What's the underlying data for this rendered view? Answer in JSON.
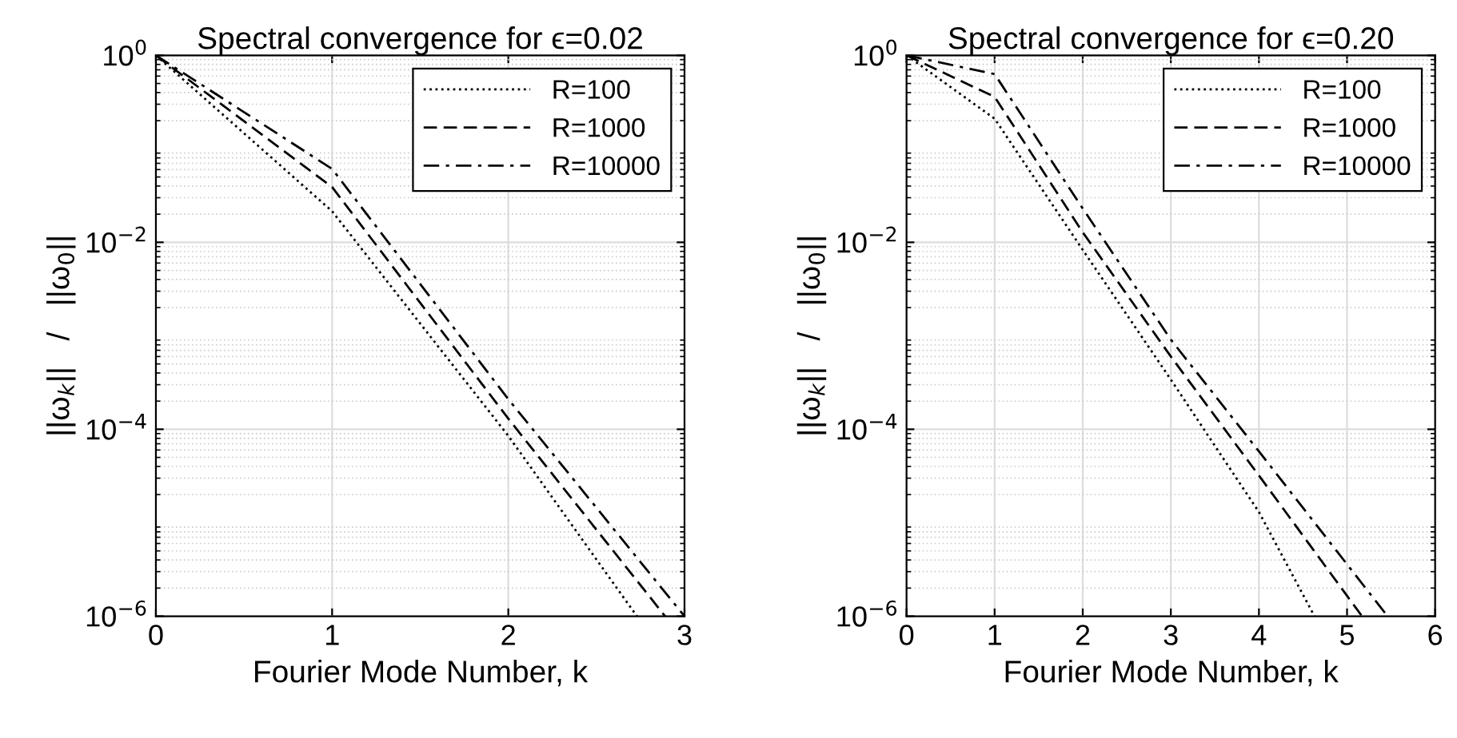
{
  "chart_data": [
    {
      "type": "line",
      "title": "Spectral convergence for ϵ=0.02",
      "xlabel": "Fourier Mode Number, k",
      "ylabel": "||ω$_{k}$||   /   ||ω$_{0}$||",
      "log": "y",
      "grid": true,
      "legend": "top right",
      "xlim": [
        0,
        3
      ],
      "xticks": [
        0,
        1,
        2,
        3
      ],
      "ylim": [
        1e-06,
        1
      ],
      "yticks": [
        {
          "value": 1e-06,
          "label": "10$^{−6}$"
        },
        {
          "value": 0.0001,
          "label": "10$^{−4}$"
        },
        {
          "value": 0.01,
          "label": "10$^{−2}$"
        },
        {
          "value": 1,
          "label": "10$^{0}$"
        }
      ],
      "series": [
        {
          "name": "R=100",
          "color": "#000000",
          "line_style": "dotted",
          "x": [
            0,
            1,
            2,
            2.73
          ],
          "values": [
            1,
            0.0215,
            8.5e-05,
            1e-06
          ]
        },
        {
          "name": "R=1000",
          "color": "#000000",
          "line_style": "dashed",
          "x": [
            0,
            1,
            2,
            2.89
          ],
          "values": [
            1,
            0.039,
            0.00013,
            1e-06
          ]
        },
        {
          "name": "R=10000",
          "color": "#000000",
          "line_style": "dashdot",
          "x": [
            0,
            1,
            2,
            3
          ],
          "values": [
            1,
            0.061,
            0.00021,
            1e-06
          ]
        }
      ]
    },
    {
      "type": "line",
      "title": "Spectral convergence for ϵ=0.20",
      "xlabel": "Fourier Mode Number, k",
      "ylabel": "||ω$_{k}$||   /   ||ω$_{0}$||",
      "log": "y",
      "grid": true,
      "legend": "top right",
      "xlim": [
        0,
        6
      ],
      "xticks": [
        0,
        1,
        2,
        3,
        4,
        5,
        6
      ],
      "ylim": [
        1e-06,
        1
      ],
      "yticks": [
        {
          "value": 1e-06,
          "label": "10$^{−6}$"
        },
        {
          "value": 0.0001,
          "label": "10$^{−4}$"
        },
        {
          "value": 0.01,
          "label": "10$^{−2}$"
        },
        {
          "value": 1,
          "label": "10$^{0}$"
        }
      ],
      "series": [
        {
          "name": "R=100",
          "color": "#000000",
          "line_style": "dotted",
          "x": [
            0,
            1,
            2,
            3,
            4,
            4.63
          ],
          "values": [
            1,
            0.21,
            0.0083,
            0.00034,
            1.3e-05,
            1e-06
          ]
        },
        {
          "name": "R=1000",
          "color": "#000000",
          "line_style": "dashed",
          "x": [
            0,
            1,
            2,
            3,
            4,
            5.17
          ],
          "values": [
            1,
            0.36,
            0.0128,
            0.0006,
            3.2e-05,
            1e-06
          ]
        },
        {
          "name": "R=10000",
          "color": "#000000",
          "line_style": "dashdot",
          "x": [
            0,
            1,
            2,
            3,
            4,
            5.46
          ],
          "values": [
            1,
            0.63,
            0.023,
            0.00091,
            5.8e-05,
            1e-06
          ]
        }
      ]
    }
  ]
}
